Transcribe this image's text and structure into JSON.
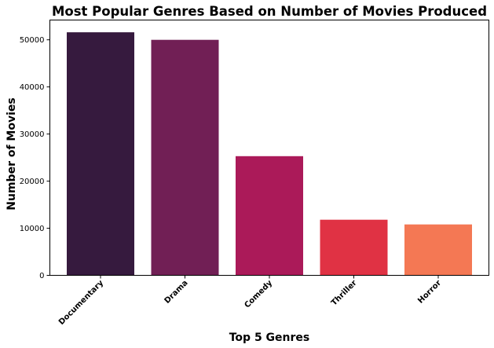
{
  "chart_data": {
    "type": "bar",
    "title": "Most Popular Genres Based on Number of Movies Produced",
    "xlabel": "Top 5 Genres",
    "ylabel": "Number of Movies",
    "categories": [
      "Documentary",
      "Drama",
      "Comedy",
      "Thriller",
      "Horror"
    ],
    "values": [
      51600,
      50000,
      25300,
      11800,
      10800
    ],
    "colors": [
      "#361a3e",
      "#711f55",
      "#ab1a59",
      "#e03244",
      "#f47854"
    ],
    "ylim": [
      0,
      54200
    ],
    "yticks": [
      0,
      10000,
      20000,
      30000,
      40000,
      50000
    ],
    "grid": false,
    "legend": "none"
  }
}
